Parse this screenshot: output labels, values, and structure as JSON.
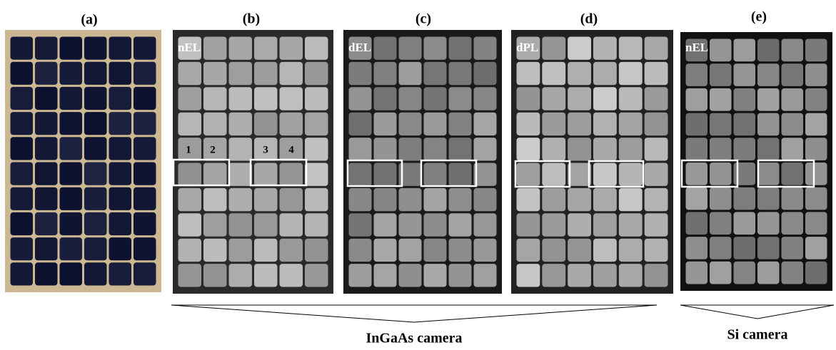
{
  "panels": [
    {
      "label": "(a)"
    },
    {
      "label": "(b)",
      "overlay": "nEL",
      "box_labels": [
        "1",
        "2",
        "3",
        "4"
      ]
    },
    {
      "label": "(c)",
      "overlay": "dEL"
    },
    {
      "label": "(d)",
      "overlay": "dPL"
    },
    {
      "label": "(e)",
      "overlay": "nEL"
    }
  ],
  "cameras": [
    {
      "label": "InGaAs camera"
    },
    {
      "label": "Si camera"
    }
  ]
}
